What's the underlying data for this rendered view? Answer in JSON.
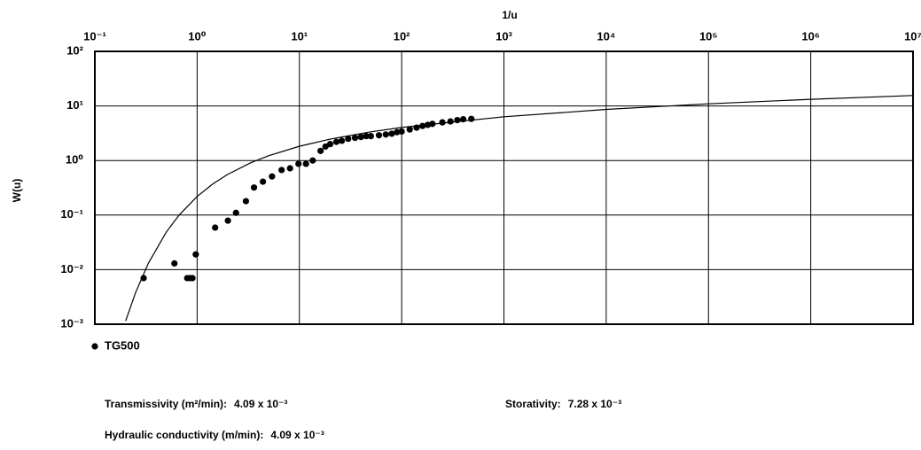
{
  "chart_data": {
    "type": "scatter",
    "x_label": "1/u",
    "y_label": "W(u)",
    "xscale": "log",
    "yscale": "log",
    "grid": true,
    "xlim": [
      0.1,
      10000000
    ],
    "ylim": [
      0.001,
      100
    ],
    "xticks": [
      {
        "value": 0.1,
        "label": "10⁻¹"
      },
      {
        "value": 1,
        "label": "10⁰"
      },
      {
        "value": 10,
        "label": "10¹"
      },
      {
        "value": 100,
        "label": "10²"
      },
      {
        "value": 1000,
        "label": "10³"
      },
      {
        "value": 10000,
        "label": "10⁴"
      },
      {
        "value": 100000,
        "label": "10⁵"
      },
      {
        "value": 1000000,
        "label": "10⁶"
      },
      {
        "value": 10000000,
        "label": "10⁷"
      }
    ],
    "yticks": [
      {
        "value": 0.001,
        "label": "10⁻³"
      },
      {
        "value": 0.01,
        "label": "10⁻²"
      },
      {
        "value": 0.1,
        "label": "10⁻¹"
      },
      {
        "value": 1,
        "label": "10⁰"
      },
      {
        "value": 10,
        "label": "10¹"
      },
      {
        "value": 100,
        "label": "10²"
      }
    ],
    "series": [
      {
        "name": "TG500",
        "color": "#000000",
        "x": [
          0.3,
          0.6,
          0.8,
          0.85,
          0.9,
          0.97,
          1.5,
          2.0,
          2.4,
          3.0,
          3.6,
          4.4,
          5.4,
          6.7,
          8.1,
          9.8,
          11.6,
          13.5,
          16.1,
          18,
          20,
          23,
          26,
          30,
          35,
          40,
          45,
          50,
          60,
          70,
          80,
          90,
          100,
          120,
          140,
          160,
          180,
          200,
          250,
          300,
          350,
          400,
          480
        ],
        "values": [
          0.007,
          0.013,
          0.007,
          0.007,
          0.007,
          0.019,
          0.059,
          0.079,
          0.11,
          0.18,
          0.32,
          0.41,
          0.51,
          0.67,
          0.72,
          0.87,
          0.87,
          1.0,
          1.5,
          1.8,
          2.0,
          2.2,
          2.3,
          2.5,
          2.6,
          2.7,
          2.8,
          2.8,
          2.9,
          3.0,
          3.1,
          3.3,
          3.4,
          3.7,
          4.0,
          4.3,
          4.5,
          4.7,
          5.0,
          5.2,
          5.5,
          5.7,
          5.8
        ]
      }
    ],
    "curve": {
      "color": "#000000",
      "x": [
        0.2,
        0.25,
        0.3333,
        0.5,
        0.6667,
        1,
        1.4286,
        2,
        3.333,
        5,
        10,
        20,
        50,
        100,
        1000,
        10000,
        100000,
        1000000,
        10000000
      ],
      "values": [
        0.001148,
        0.003779,
        0.01305,
        0.0489,
        0.1,
        0.2194,
        0.3738,
        0.5598,
        0.9057,
        1.2227,
        1.8229,
        2.4679,
        3.3547,
        4.0379,
        6.3316,
        8.6332,
        10.9357,
        13.2383,
        15.5409
      ]
    },
    "annotations": [
      {
        "label": "Transmissivity (m²/min):",
        "value": "4.09 x 10⁻³"
      },
      {
        "label": "Storativity:",
        "value": "7.28 x 10⁻³"
      },
      {
        "label": "Hydraulic conductivity (m/min):",
        "value": "4.09 x 10⁻³"
      }
    ]
  }
}
